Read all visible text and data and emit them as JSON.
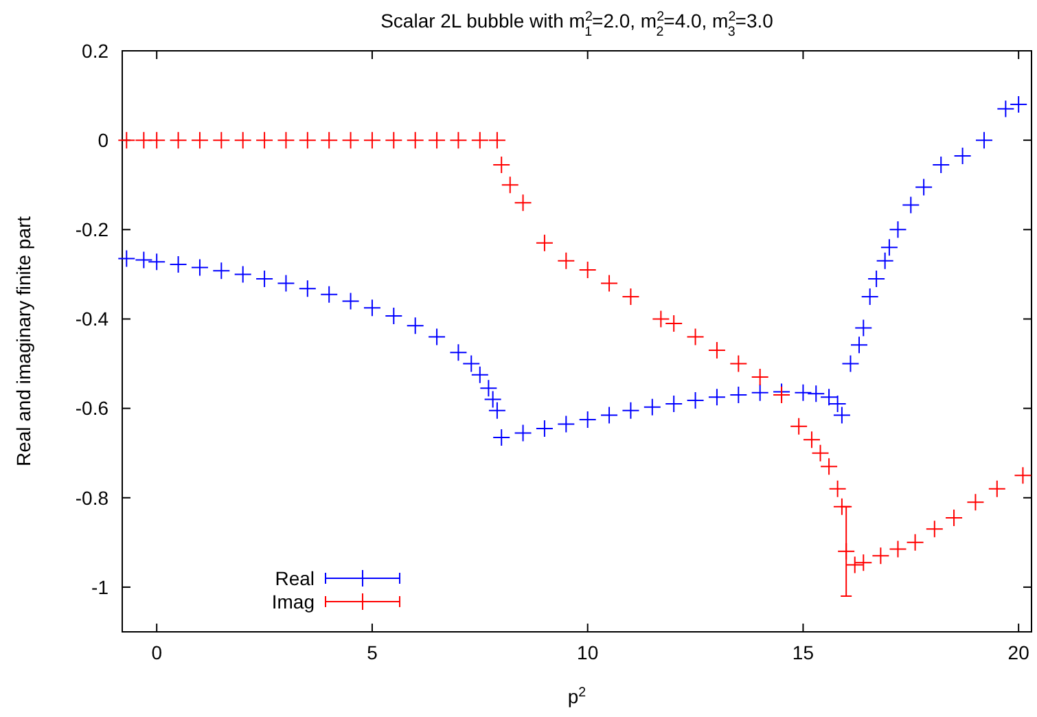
{
  "chart_data": {
    "type": "scatter",
    "title": "Scalar 2L bubble with m$^{2}$$_{1}$=2.0, m$^{2}$$_{2}$=4.0, m$^{2}$$_{3}$=3.0",
    "xlabel": "p$^{2}$",
    "ylabel": "Real and imaginary finite part",
    "xlim": [
      -0.8,
      20.3
    ],
    "ylim": [
      -1.1,
      0.2
    ],
    "xticks": [
      0,
      5,
      10,
      15,
      20
    ],
    "yticks": [
      0.2,
      0,
      -0.2,
      -0.4,
      -0.6,
      -0.8,
      -1
    ],
    "grid": false,
    "legend": "bottom left",
    "marker": "cross",
    "series": [
      {
        "name": "Real",
        "color": "#0000ff",
        "x": [
          -0.7,
          -0.3,
          0,
          0.5,
          1,
          1.5,
          2,
          2.5,
          3,
          3.5,
          4,
          4.5,
          5,
          5.5,
          6,
          6.5,
          7,
          7.3,
          7.5,
          7.7,
          7.8,
          7.9,
          8.0,
          8.5,
          9,
          9.5,
          10,
          10.5,
          11,
          11.5,
          12,
          12.5,
          13,
          13.5,
          14,
          14.5,
          15,
          15.3,
          15.6,
          15.8,
          15.9,
          16.1,
          16.3,
          16.4,
          16.55,
          16.7,
          16.9,
          17.0,
          17.2,
          17.5,
          17.8,
          18.2,
          18.7,
          19.2,
          19.7,
          20.0
        ],
        "values": [
          -0.265,
          -0.268,
          -0.272,
          -0.278,
          -0.285,
          -0.292,
          -0.3,
          -0.31,
          -0.32,
          -0.332,
          -0.345,
          -0.36,
          -0.375,
          -0.393,
          -0.415,
          -0.44,
          -0.475,
          -0.5,
          -0.525,
          -0.555,
          -0.58,
          -0.605,
          -0.665,
          -0.655,
          -0.645,
          -0.635,
          -0.625,
          -0.615,
          -0.605,
          -0.597,
          -0.59,
          -0.582,
          -0.575,
          -0.57,
          -0.565,
          -0.563,
          -0.565,
          -0.567,
          -0.575,
          -0.59,
          -0.615,
          -0.5,
          -0.458,
          -0.42,
          -0.35,
          -0.31,
          -0.27,
          -0.24,
          -0.2,
          -0.145,
          -0.105,
          -0.055,
          -0.035,
          0.0,
          0.07,
          0.08
        ]
      },
      {
        "name": "Imag",
        "color": "#ff0000",
        "x": [
          -0.7,
          -0.3,
          0,
          0.5,
          1,
          1.5,
          2,
          2.5,
          3,
          3.5,
          4,
          4.5,
          5,
          5.5,
          6,
          6.5,
          7,
          7.5,
          7.9,
          8.0,
          8.2,
          8.5,
          9,
          9.5,
          10,
          10.5,
          11,
          11.7,
          12,
          12.5,
          13,
          13.5,
          14,
          14.5,
          14.9,
          15.2,
          15.4,
          15.6,
          15.8,
          15.9,
          16.0,
          16.2,
          16.4,
          16.8,
          17.2,
          17.6,
          18.05,
          18.5,
          19,
          19.5,
          20.1
        ],
        "values": [
          0,
          0,
          0,
          0,
          0,
          0,
          0,
          0,
          0,
          0,
          0,
          0,
          0,
          0,
          0,
          0,
          0,
          0,
          0,
          -0.055,
          -0.1,
          -0.14,
          -0.23,
          -0.27,
          -0.29,
          -0.32,
          -0.35,
          -0.4,
          -0.41,
          -0.44,
          -0.47,
          -0.5,
          -0.53,
          -0.57,
          -0.64,
          -0.67,
          -0.7,
          -0.73,
          -0.78,
          -0.82,
          -0.92,
          -0.95,
          -0.945,
          -0.93,
          -0.915,
          -0.9,
          -0.87,
          -0.845,
          -0.81,
          -0.78,
          -0.75
        ],
        "errors": [
          null,
          null,
          null,
          null,
          null,
          null,
          null,
          null,
          null,
          null,
          null,
          null,
          null,
          null,
          null,
          null,
          null,
          null,
          null,
          null,
          null,
          null,
          null,
          null,
          null,
          null,
          null,
          null,
          null,
          null,
          null,
          null,
          null,
          null,
          null,
          null,
          null,
          null,
          null,
          null,
          [
            -1.02,
            -0.82
          ],
          null,
          null,
          null,
          null,
          null,
          null,
          null,
          null,
          null,
          null
        ]
      }
    ]
  }
}
